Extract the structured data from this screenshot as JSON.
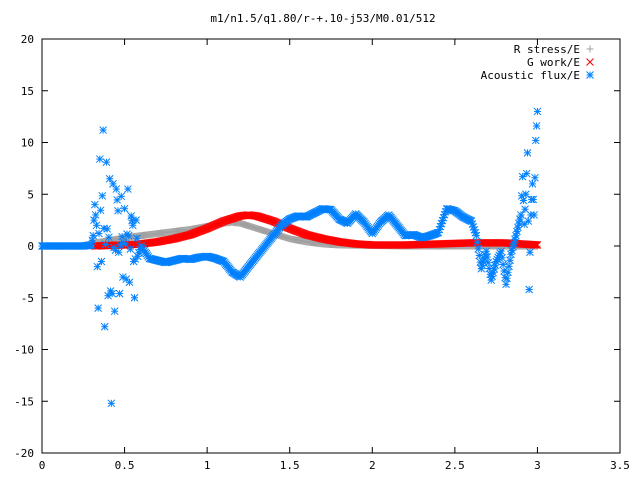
{
  "chart_data": {
    "type": "scatter",
    "title": "m1/n1.5/q1.80/r-+.10-j53/M0.01/512",
    "xlim": [
      0,
      3.5
    ],
    "ylim": [
      -20,
      20
    ],
    "xticks": [
      "0",
      "0.5",
      "1",
      "1.5",
      "2",
      "2.5",
      "3",
      "3.5"
    ],
    "yticks": [
      "20",
      "15",
      "10",
      "5",
      "0",
      "-5",
      "-10",
      "-15",
      "-20"
    ],
    "grid": false,
    "legend_position": "top-right",
    "series": [
      {
        "name": "R stress/E",
        "marker": "+",
        "color": "#a0a0a0",
        "x": [
          0.0,
          0.25,
          0.32,
          0.4,
          0.5,
          0.6,
          0.7,
          0.8,
          0.9,
          1.0,
          1.1,
          1.15,
          1.2,
          1.3,
          1.4,
          1.5,
          1.6,
          1.7,
          1.8,
          2.0,
          2.2,
          2.5,
          2.8,
          3.0
        ],
        "y": [
          0.0,
          0.0,
          0.3,
          0.5,
          0.8,
          1.0,
          1.2,
          1.4,
          1.6,
          1.9,
          2.2,
          2.3,
          2.2,
          1.7,
          1.2,
          0.7,
          0.4,
          0.2,
          0.1,
          0.05,
          0.0,
          0.0,
          0.0,
          0.0
        ]
      },
      {
        "name": "G work/E",
        "marker": "x",
        "color": "#ff0000",
        "x": [
          0.32,
          0.4,
          0.5,
          0.6,
          0.7,
          0.8,
          0.9,
          1.0,
          1.1,
          1.2,
          1.25,
          1.3,
          1.4,
          1.5,
          1.6,
          1.7,
          1.8,
          1.9,
          2.0,
          2.2,
          2.4,
          2.6,
          2.8,
          3.0
        ],
        "y": [
          0.0,
          0.05,
          0.1,
          0.2,
          0.4,
          0.7,
          1.1,
          1.7,
          2.4,
          2.9,
          3.0,
          2.9,
          2.4,
          1.7,
          1.1,
          0.7,
          0.4,
          0.2,
          0.1,
          0.1,
          0.2,
          0.3,
          0.3,
          0.1
        ]
      },
      {
        "name": "Acoustic flux/E",
        "marker": "*",
        "color": "#0080ff",
        "x": [
          0.0,
          0.05,
          0.1,
          0.15,
          0.2,
          0.25,
          0.3,
          0.31,
          0.32,
          0.33,
          0.34,
          0.35,
          0.36,
          0.37,
          0.38,
          0.39,
          0.4,
          0.41,
          0.42,
          0.43,
          0.44,
          0.45,
          0.46,
          0.47,
          0.48,
          0.49,
          0.5,
          0.51,
          0.52,
          0.53,
          0.54,
          0.55,
          0.56,
          0.57,
          0.58,
          0.6,
          0.65,
          0.7,
          0.75,
          0.8,
          0.85,
          0.9,
          0.95,
          1.0,
          1.05,
          1.1,
          1.15,
          1.2,
          1.25,
          1.3,
          1.35,
          1.4,
          1.45,
          1.5,
          1.55,
          1.6,
          1.65,
          1.7,
          1.75,
          1.8,
          1.85,
          1.9,
          1.95,
          2.0,
          2.05,
          2.1,
          2.15,
          2.2,
          2.25,
          2.3,
          2.35,
          2.4,
          2.45,
          2.5,
          2.55,
          2.6,
          2.63,
          2.66,
          2.69,
          2.72,
          2.75,
          2.78,
          2.81,
          2.84,
          2.87,
          2.9,
          2.91,
          2.92,
          2.93,
          2.94,
          2.95,
          2.96,
          2.97,
          2.98,
          2.99,
          3.0
        ],
        "y": [
          0.0,
          0.0,
          0.0,
          0.0,
          0.0,
          0.0,
          0.1,
          1.0,
          4.0,
          2.0,
          -6.0,
          8.4,
          -1.5,
          11.2,
          -7.8,
          8.1,
          -4.8,
          6.5,
          -15.2,
          6.0,
          -6.3,
          5.5,
          3.4,
          -4.6,
          4.8,
          -3.0,
          3.6,
          -3.2,
          5.5,
          -3.5,
          2.9,
          2.0,
          -5.0,
          2.5,
          -1.0,
          0.0,
          -1.2,
          -1.4,
          -1.6,
          -1.4,
          -1.2,
          -1.3,
          -1.1,
          -1.0,
          -1.2,
          -1.5,
          -2.5,
          -3.0,
          -2.0,
          -1.0,
          0.0,
          1.0,
          2.0,
          2.6,
          2.9,
          2.8,
          3.2,
          3.6,
          3.5,
          2.6,
          2.2,
          3.1,
          2.3,
          1.2,
          2.3,
          3.0,
          2.0,
          1.0,
          1.1,
          0.8,
          1.0,
          1.3,
          3.6,
          3.4,
          2.8,
          2.4,
          1.0,
          -2.2,
          -0.5,
          -3.3,
          -1.5,
          -0.5,
          -3.7,
          -0.8,
          1.0,
          3.0,
          6.7,
          2.1,
          5.0,
          9.0,
          -4.2,
          3.0,
          6.0,
          3.0,
          10.2,
          13.0
        ]
      }
    ]
  }
}
